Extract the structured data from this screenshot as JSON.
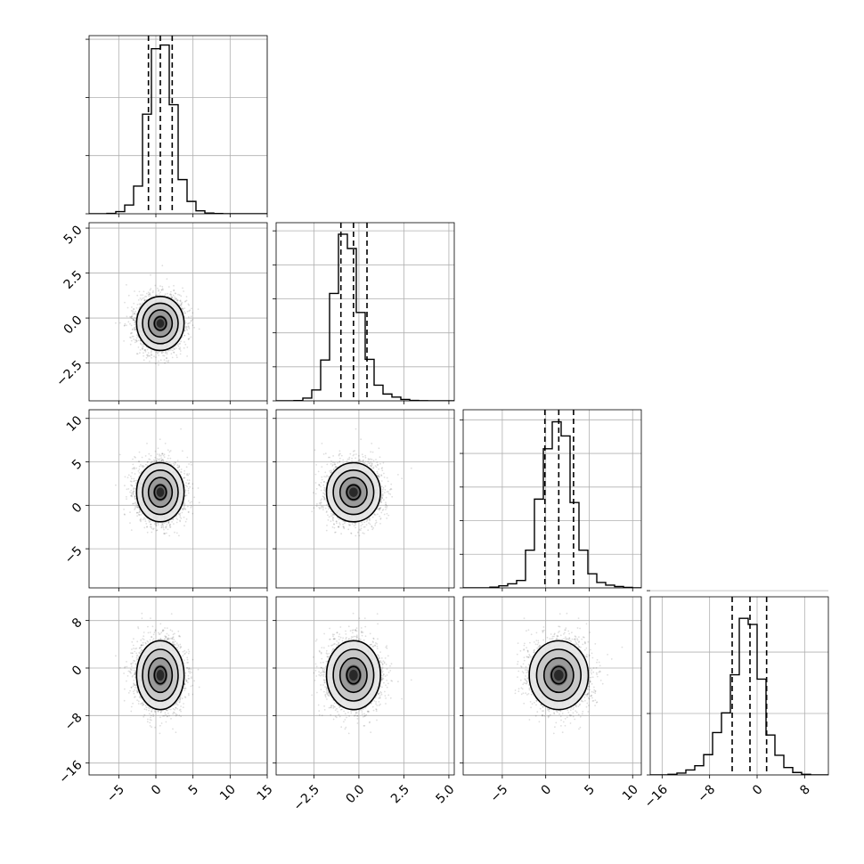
{
  "chart_data": {
    "type": "corner",
    "grid": true,
    "parameters": [
      {
        "range": [
          -9,
          15
        ],
        "ticks": [
          -5,
          0,
          5,
          10,
          15
        ],
        "tick_labels": [
          "−5",
          "0",
          "5",
          "10",
          "15"
        ],
        "quantiles": [
          -1.0,
          0.6,
          2.2
        ],
        "hist_bins": [
          -9,
          -7.8,
          -6.6,
          -5.4,
          -4.2,
          -3.0,
          -1.8,
          -0.6,
          0.6,
          1.8,
          3.0,
          4.2,
          5.4,
          6.6,
          7.8,
          9.0,
          10.2,
          11.4,
          12.6,
          13.8,
          15
        ],
        "hist_counts": [
          0,
          0,
          5,
          30,
          120,
          380,
          1370,
          2270,
          2320,
          1500,
          470,
          170,
          40,
          10,
          3,
          0,
          0,
          0,
          0,
          0
        ],
        "hist_ymax": 2450,
        "hist_yticks": [
          0,
          800,
          1600,
          2400
        ],
        "center": 0.6,
        "spread": 1.6
      },
      {
        "range": [
          -4.6,
          5.3
        ],
        "ticks": [
          -2.5,
          0.0,
          2.5,
          5.0
        ],
        "tick_labels": [
          "−2.5",
          "0.0",
          "2.5",
          "5.0"
        ],
        "quantiles": [
          -1.0,
          -0.3,
          0.45
        ],
        "hist_bins": [
          -4.6,
          -4.105,
          -3.61,
          -3.115,
          -2.62,
          -2.125,
          -1.63,
          -1.135,
          -0.64,
          -0.145,
          0.35,
          0.845,
          1.34,
          1.835,
          2.33,
          2.825,
          3.32,
          3.815,
          4.31,
          4.805,
          5.3
        ],
        "hist_counts": [
          0,
          0,
          4,
          40,
          160,
          600,
          1580,
          2450,
          2240,
          1300,
          610,
          230,
          100,
          55,
          20,
          5,
          2,
          0,
          0,
          0
        ],
        "hist_ymax": 2620,
        "hist_yticks": [
          0,
          500,
          1000,
          1500,
          2000,
          2500
        ],
        "center": -0.3,
        "spread": 0.75
      },
      {
        "range": [
          -9.5,
          11
        ],
        "ticks": [
          -5,
          0,
          5,
          10
        ],
        "tick_labels": [
          "−5",
          "0",
          "5",
          "10"
        ],
        "quantiles": [
          -0.1,
          1.5,
          3.2
        ],
        "hist_bins": [
          -9.5,
          -8.475,
          -7.45,
          -6.425,
          -5.4,
          -4.375,
          -3.35,
          -2.325,
          -1.3,
          -0.275,
          0.75,
          1.775,
          2.8,
          3.825,
          4.85,
          5.875,
          6.9,
          7.925,
          8.95,
          9.975,
          11
        ],
        "hist_counts": [
          0,
          0,
          0,
          10,
          30,
          60,
          110,
          560,
          1320,
          2070,
          2470,
          2260,
          1270,
          560,
          210,
          80,
          40,
          20,
          8,
          0
        ],
        "hist_ymax": 2650,
        "hist_yticks": [
          0,
          500,
          1000,
          1500,
          2000,
          2500
        ],
        "center": 1.5,
        "spread": 1.7
      },
      {
        "range": [
          -18,
          12
        ],
        "ticks": [
          -16,
          -8,
          0,
          8
        ],
        "tick_labels": [
          "−16",
          "−8",
          "0",
          "8"
        ],
        "quantiles": [
          -4.2,
          -1.2,
          1.6
        ],
        "hist_bins": [
          -18,
          -16.5,
          -15,
          -13.5,
          -12,
          -10.5,
          -9,
          -7.5,
          -6,
          -4.5,
          -3,
          -1.5,
          0,
          1.5,
          3,
          4.5,
          6,
          7.5,
          9,
          10.5,
          12
        ],
        "hist_counts": [
          0,
          0,
          10,
          30,
          80,
          150,
          330,
          690,
          1010,
          1630,
          2550,
          2450,
          1560,
          650,
          320,
          120,
          40,
          10,
          0,
          0
        ],
        "hist_ymax": 2900,
        "hist_yticks": [
          0,
          1000,
          2000,
          3000
        ],
        "center": -1.2,
        "spread": 2.9
      }
    ],
    "samples": 8000,
    "contour_levels": [
      0.118,
      0.393,
      0.675,
      0.865
    ]
  }
}
